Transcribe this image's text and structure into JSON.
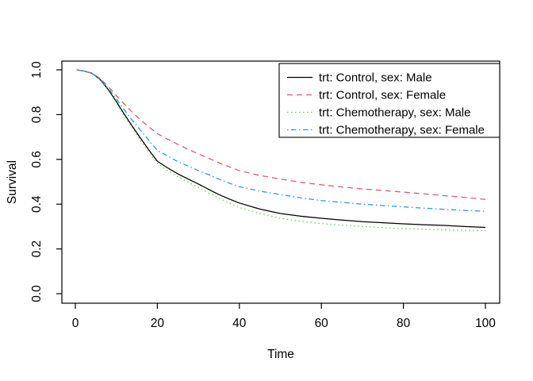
{
  "figure": {
    "background": "#ffffff",
    "axis_color": "#000000",
    "xlabel": "Time",
    "ylabel": "Survival"
  },
  "chart_data": {
    "type": "line",
    "title": "",
    "xlabel": "Time",
    "ylabel": "Survival",
    "xlim": [
      0,
      100
    ],
    "ylim": [
      0.0,
      1.0
    ],
    "x_ticks": [
      "0",
      "20",
      "40",
      "60",
      "80",
      "100"
    ],
    "x_tick_values": [
      0,
      20,
      40,
      60,
      80,
      100
    ],
    "y_ticks": [
      "0.0",
      "0.2",
      "0.4",
      "0.6",
      "0.8",
      "1.0"
    ],
    "y_tick_values": [
      0.0,
      0.2,
      0.4,
      0.6,
      0.8,
      1.0
    ],
    "grid": false,
    "legend_position": "top-right",
    "x": [
      0.3,
      2,
      4,
      6,
      8,
      10,
      12,
      14,
      16,
      18,
      20,
      22.5,
      25,
      27.5,
      30,
      32.5,
      35,
      37.5,
      40,
      45,
      50,
      55,
      60,
      65,
      70,
      75,
      80,
      85,
      90,
      95,
      100
    ],
    "series": [
      {
        "name": "trt: Control, sex: Male",
        "color": "#000000",
        "linestyle": "solid",
        "values": [
          1.0,
          0.995,
          0.985,
          0.958,
          0.912,
          0.858,
          0.8,
          0.745,
          0.692,
          0.64,
          0.592,
          0.562,
          0.535,
          0.512,
          0.49,
          0.466,
          0.443,
          0.423,
          0.405,
          0.378,
          0.358,
          0.346,
          0.337,
          0.329,
          0.322,
          0.317,
          0.312,
          0.308,
          0.305,
          0.3,
          0.296
        ]
      },
      {
        "name": "trt: Control, sex: Female",
        "color": "#DF536B",
        "linestyle": "dashed",
        "values": [
          1.0,
          0.995,
          0.986,
          0.962,
          0.925,
          0.885,
          0.846,
          0.808,
          0.775,
          0.744,
          0.715,
          0.69,
          0.667,
          0.645,
          0.625,
          0.605,
          0.585,
          0.567,
          0.55,
          0.528,
          0.512,
          0.498,
          0.486,
          0.477,
          0.468,
          0.461,
          0.454,
          0.446,
          0.438,
          0.43,
          0.421
        ]
      },
      {
        "name": "trt: Chemotherapy, sex: Male",
        "color": "#61D04F",
        "linestyle": "dotted",
        "values": [
          1.0,
          0.995,
          0.984,
          0.956,
          0.908,
          0.852,
          0.792,
          0.736,
          0.682,
          0.63,
          0.582,
          0.55,
          0.522,
          0.498,
          0.475,
          0.45,
          0.427,
          0.405,
          0.385,
          0.358,
          0.337,
          0.323,
          0.313,
          0.306,
          0.3,
          0.295,
          0.291,
          0.288,
          0.285,
          0.283,
          0.282
        ]
      },
      {
        "name": "trt: Chemotherapy, sex: Female",
        "color": "#2297E6",
        "linestyle": "dashdot",
        "values": [
          1.0,
          0.995,
          0.985,
          0.96,
          0.918,
          0.87,
          0.82,
          0.772,
          0.728,
          0.683,
          0.64,
          0.615,
          0.59,
          0.57,
          0.55,
          0.532,
          0.512,
          0.494,
          0.478,
          0.458,
          0.443,
          0.428,
          0.416,
          0.408,
          0.4,
          0.394,
          0.388,
          0.382,
          0.377,
          0.372,
          0.368
        ]
      }
    ]
  }
}
